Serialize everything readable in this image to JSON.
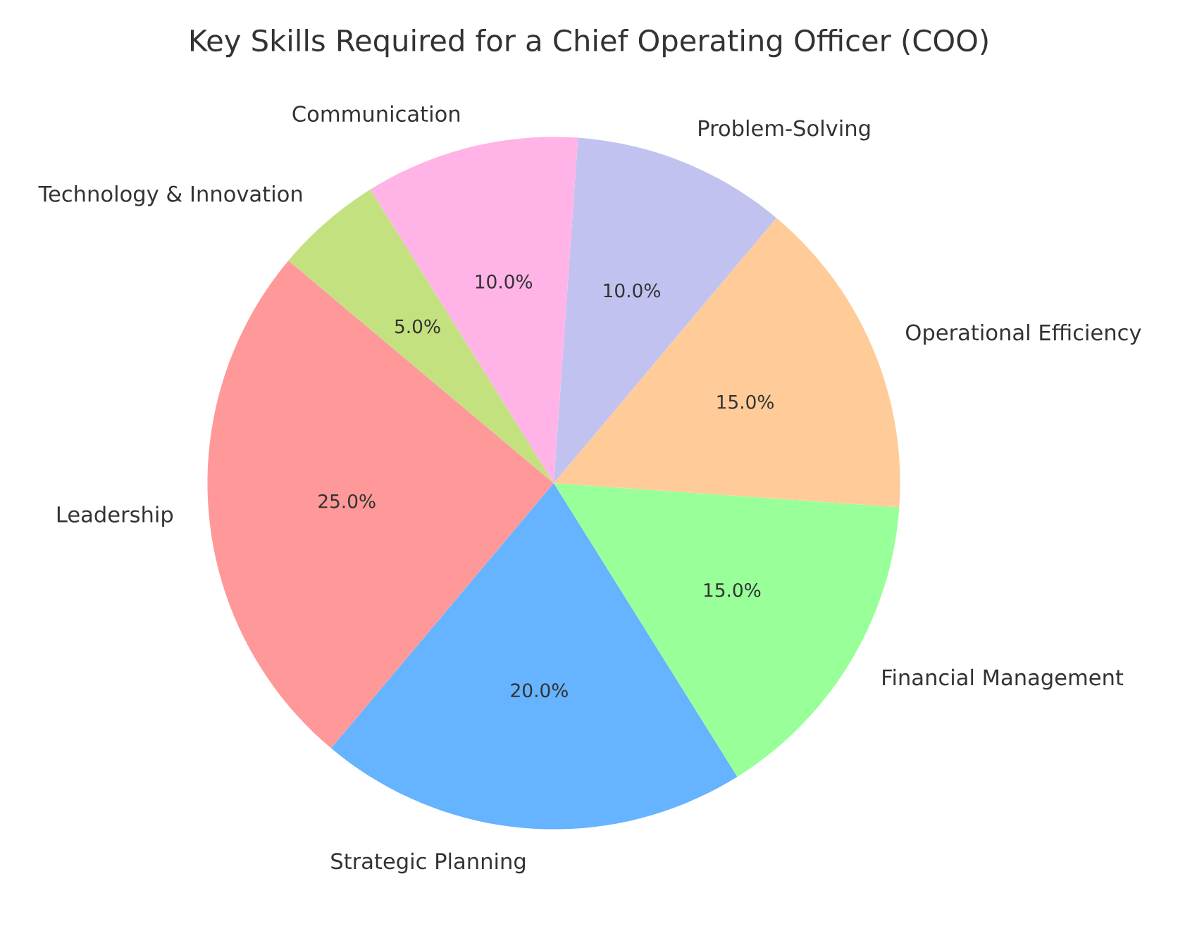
{
  "chart_data": {
    "type": "pie",
    "title": "Key Skills Required for a Chief Operating Officer (COO)",
    "categories": [
      "Leadership",
      "Strategic Planning",
      "Financial Management",
      "Operational Efficiency",
      "Problem-Solving",
      "Communication",
      "Technology & Innovation"
    ],
    "values": [
      25,
      20,
      15,
      15,
      10,
      10,
      5
    ],
    "colors": [
      "#ff9999",
      "#66b3ff",
      "#99ff99",
      "#ffcc99",
      "#c2c2f0",
      "#ffb3e6",
      "#c4e17f"
    ],
    "value_labels": [
      "25.0%",
      "20.0%",
      "15.0%",
      "15.0%",
      "10.0%",
      "10.0%",
      "5.0%"
    ]
  }
}
